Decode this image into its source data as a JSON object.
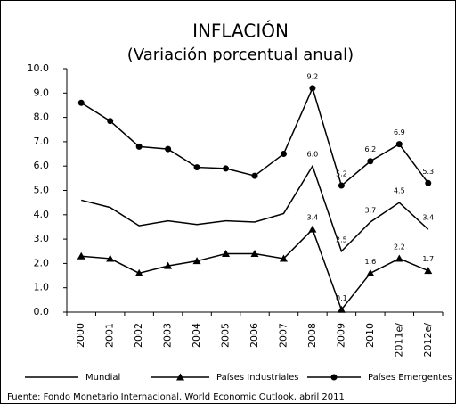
{
  "chart_data": {
    "type": "line",
    "title": "INFLACIÓN",
    "subtitle": "(Variación porcentual anual)",
    "source": "Fuente: Fondo Monetario Internacional. World Economic Outlook, abril 2011",
    "categories": [
      "2000",
      "2001",
      "2002",
      "2003",
      "2004",
      "2005",
      "2006",
      "2007",
      "2008",
      "2009",
      "2010",
      "2011e/",
      "2012e/"
    ],
    "series": [
      {
        "name": "Mundial",
        "color": "#000000",
        "values": [
          4.6,
          4.3,
          3.55,
          3.75,
          3.6,
          3.75,
          3.7,
          4.05,
          6.0,
          2.5,
          3.7,
          4.5,
          3.4
        ],
        "value_labels": [
          null,
          null,
          null,
          null,
          null,
          null,
          null,
          null,
          "6.0",
          "2.5",
          "3.7",
          "4.5",
          "3.4"
        ]
      },
      {
        "name": "Países Industriales",
        "color": "#000000",
        "marker": "triangle",
        "values": [
          2.3,
          2.2,
          1.6,
          1.9,
          2.1,
          2.4,
          2.4,
          2.2,
          3.4,
          0.1,
          1.6,
          2.2,
          1.7
        ],
        "value_labels": [
          null,
          null,
          null,
          null,
          null,
          null,
          null,
          null,
          "3.4",
          "0.1",
          "1.6",
          "2.2",
          "1.7"
        ]
      },
      {
        "name": "Países Emergentes",
        "color": "#000000",
        "marker": "circle",
        "values": [
          8.6,
          7.85,
          6.8,
          6.7,
          5.95,
          5.9,
          5.6,
          6.5,
          9.2,
          5.2,
          6.2,
          6.9,
          5.3
        ],
        "value_labels": [
          null,
          null,
          null,
          null,
          null,
          null,
          null,
          null,
          "9.2",
          "5.2",
          "6.2",
          "6.9",
          "5.3"
        ]
      }
    ],
    "ylim": [
      0,
      10
    ],
    "yticks": [
      {
        "value": 0,
        "label": "0.0"
      },
      {
        "value": 1,
        "label": "1.0"
      },
      {
        "value": 2,
        "label": "2.0"
      },
      {
        "value": 3,
        "label": "3.0"
      },
      {
        "value": 4,
        "label": "4.0"
      },
      {
        "value": 5,
        "label": "5.0"
      },
      {
        "value": 6,
        "label": "6.0"
      },
      {
        "value": 7,
        "label": "7.0"
      },
      {
        "value": 8,
        "label": "8.0"
      },
      {
        "value": 9,
        "label": "9.0"
      },
      {
        "value": 10,
        "label": "10.0"
      }
    ],
    "legend": "bottom"
  }
}
